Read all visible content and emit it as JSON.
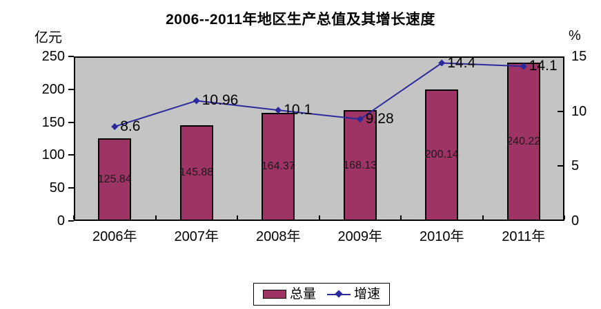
{
  "chart_data": {
    "type": "combo-bar-line",
    "title": "2006--2011年地区生产总值及其增长速度",
    "categories": [
      "2006年",
      "2007年",
      "2008年",
      "2009年",
      "2010年",
      "2011年"
    ],
    "series": [
      {
        "name": "总量",
        "type": "bar",
        "axis": "left",
        "color": "#9E3366",
        "values": [
          125.84,
          145.88,
          164.37,
          168.13,
          200.14,
          240.22
        ],
        "labels": [
          "125.84",
          "145.88",
          "164.37",
          "168.13",
          "200.14",
          "240.22"
        ]
      },
      {
        "name": "增速",
        "type": "line",
        "axis": "right",
        "marker": "diamond",
        "color": "#2A2A9C",
        "values": [
          8.6,
          10.96,
          10.1,
          9.28,
          14.4,
          14.1
        ],
        "labels": [
          "8.6",
          "10.96",
          "10.1",
          "9.28",
          "14.4",
          "14.1"
        ]
      }
    ],
    "left_axis": {
      "unit": "亿元",
      "min": 0,
      "max": 250,
      "ticks": [
        250,
        200,
        150,
        100,
        50,
        0
      ]
    },
    "right_axis": {
      "unit": "%",
      "min": 0,
      "max": 15,
      "ticks": [
        15,
        10,
        5,
        0
      ]
    },
    "plot_background": "#C4C4C4",
    "grid": false,
    "legend_position": "bottom"
  }
}
